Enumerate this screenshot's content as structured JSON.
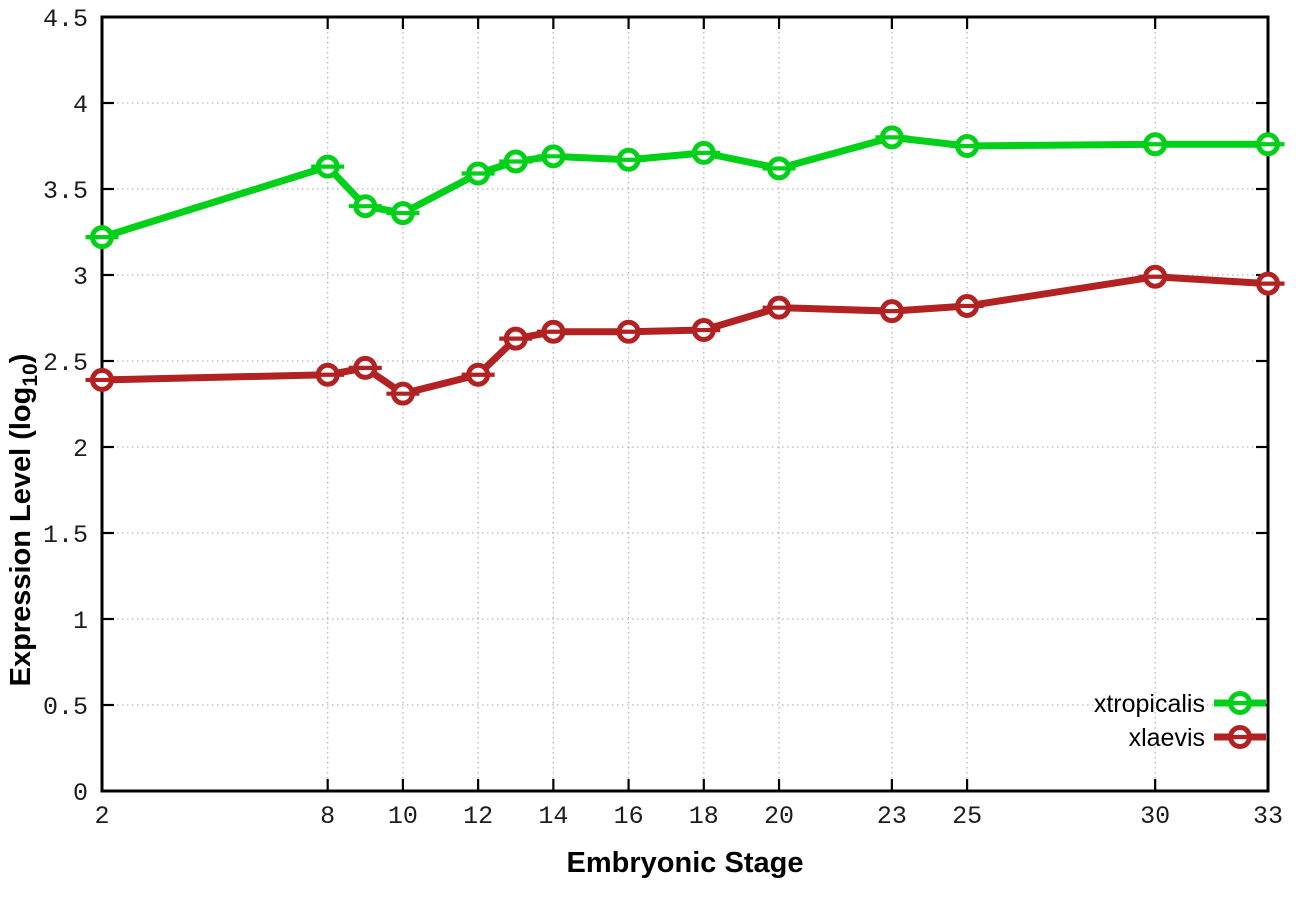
{
  "chart_data": {
    "type": "line",
    "title": "",
    "xlabel": "Embryonic Stage",
    "ylabel_parts": {
      "pre": "Expression Level (log",
      "sub": "10",
      "post": ")"
    },
    "xlim": [
      2,
      33
    ],
    "ylim": [
      0,
      4.5
    ],
    "xticks": [
      2,
      8,
      10,
      12,
      14,
      16,
      18,
      20,
      23,
      25,
      30,
      33
    ],
    "yticks": [
      0,
      0.5,
      1,
      1.5,
      2,
      2.5,
      3,
      3.5,
      4,
      4.5
    ],
    "ytick_labels": [
      "0",
      "0.5",
      "1",
      "1.5",
      "2",
      "2.5",
      "3",
      "3.5",
      "4",
      "4.5"
    ],
    "grid": true,
    "legend_position": "inside-bottom-right",
    "marker": "open-circle-with-errorbar",
    "x": [
      2,
      8,
      9,
      10,
      12,
      13,
      14,
      16,
      18,
      20,
      23,
      25,
      30,
      33
    ],
    "series": [
      {
        "name": "xtropicalis",
        "color": "#00d118",
        "values": [
          3.22,
          3.63,
          3.4,
          3.36,
          3.59,
          3.66,
          3.69,
          3.67,
          3.71,
          3.62,
          3.8,
          3.75,
          3.76,
          3.76
        ]
      },
      {
        "name": "xlaevis",
        "color": "#b22222",
        "values": [
          2.39,
          2.42,
          2.46,
          2.31,
          2.42,
          2.63,
          2.67,
          2.67,
          2.68,
          2.81,
          2.79,
          2.82,
          2.99,
          2.95
        ]
      }
    ]
  },
  "colors": {
    "background": "#ffffff",
    "axis": "#000000",
    "grid": "#b5b5b5",
    "tick_text": "#1c1c1c"
  }
}
